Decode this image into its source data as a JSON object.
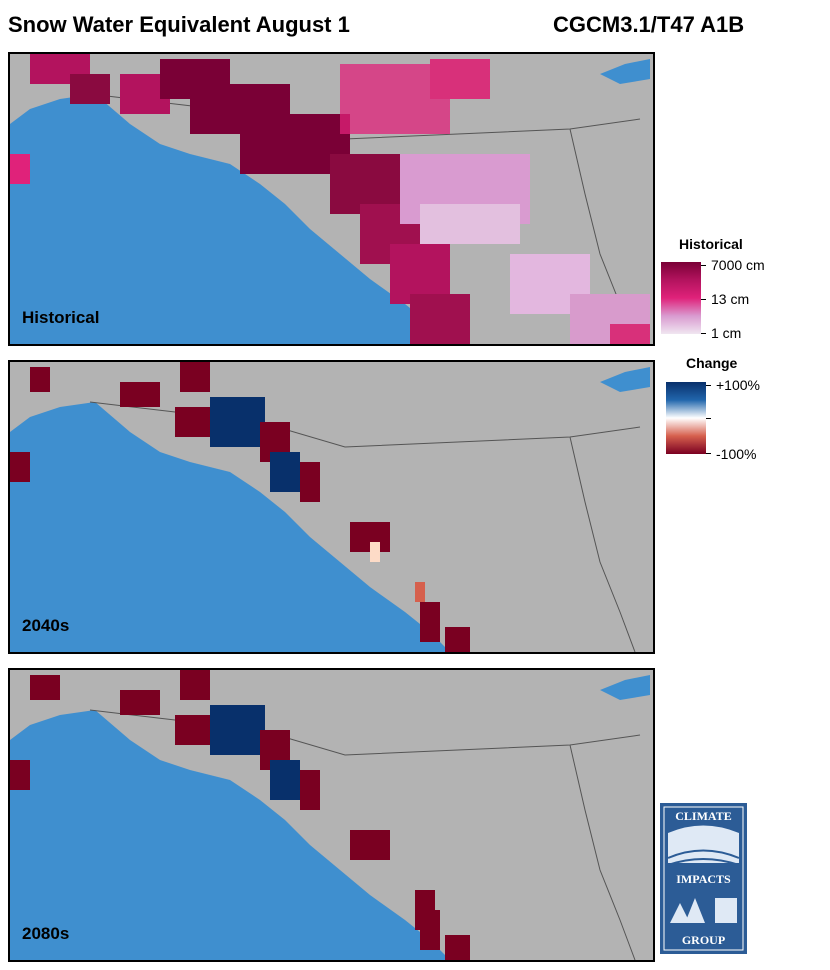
{
  "header": {
    "title": "Snow Water Equivalent August 1",
    "model": "CGCM3.1/T47 A1B"
  },
  "panels": [
    {
      "label": "Historical",
      "type": "historical"
    },
    {
      "label": "2040s",
      "type": "change"
    },
    {
      "label": "2080s",
      "type": "change"
    }
  ],
  "legend_historical": {
    "title": "Historical",
    "ticks": [
      "7000 cm",
      "13 cm",
      "1 cm"
    ],
    "colors": [
      "#7a0036",
      "#e0227a",
      "#e8c6e4"
    ]
  },
  "legend_change": {
    "title": "Change",
    "ticks": [
      "+100%",
      "-100%"
    ],
    "colors": [
      "#08306b",
      "#ffffff",
      "#7a0021"
    ]
  },
  "map_colors": {
    "land": "#b3b3b3",
    "ocean": "#3f8fcf",
    "border": "#555555"
  },
  "logo": {
    "line1": "CLIMATE",
    "line2": "IMPACTS",
    "line3": "GROUP",
    "color": "#2c5c96"
  }
}
